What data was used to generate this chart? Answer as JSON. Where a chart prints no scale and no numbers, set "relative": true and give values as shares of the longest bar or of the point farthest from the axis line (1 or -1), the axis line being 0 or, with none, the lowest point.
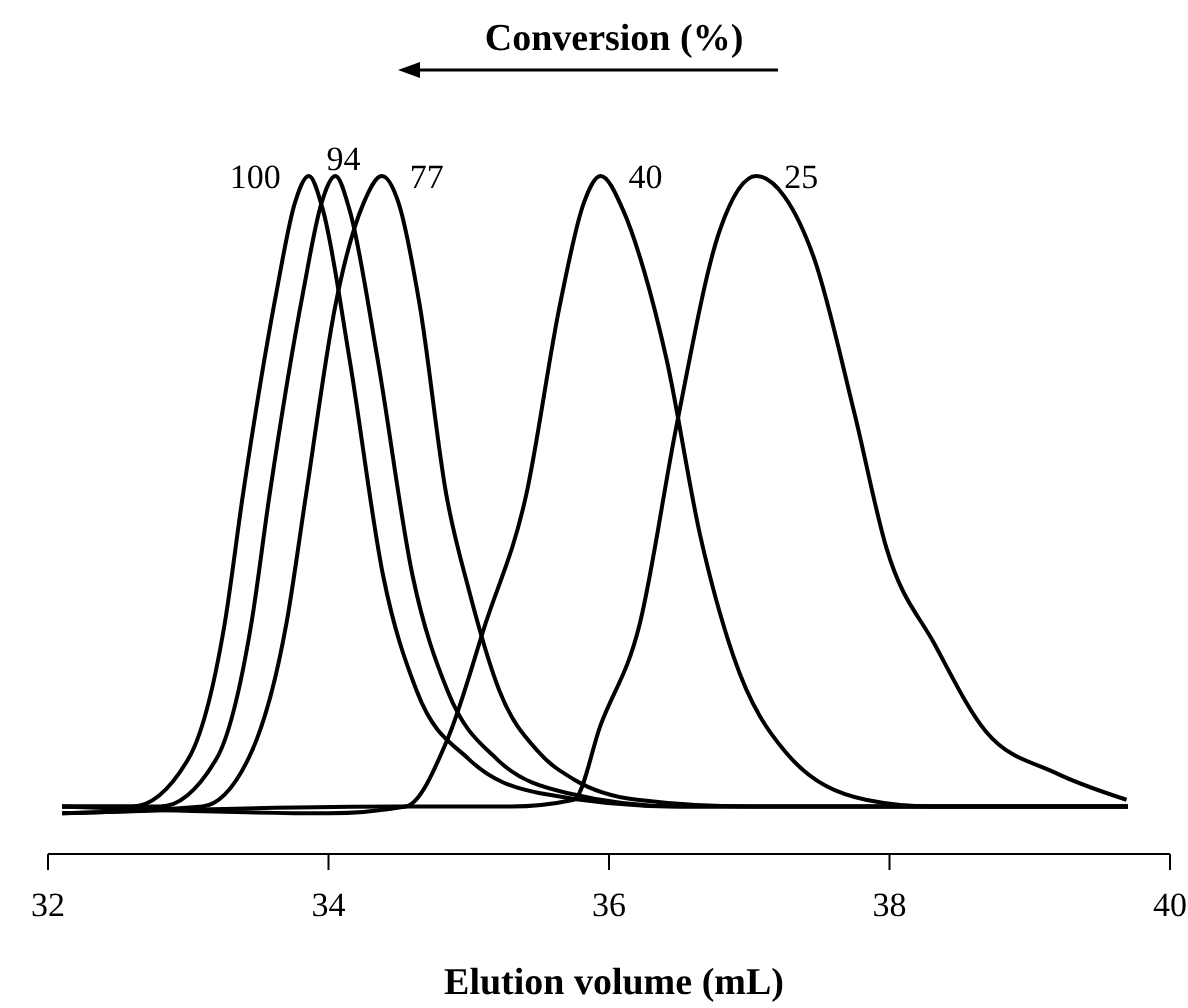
{
  "chart_data": {
    "type": "line",
    "title": "Conversion (%)",
    "xlabel": "Elution volume (mL)",
    "relative": true,
    "xlim": [
      32,
      40
    ],
    "xticks": [
      32,
      34,
      36,
      38,
      40
    ],
    "grid": false,
    "legend": false,
    "marker": "none",
    "line_style": "solid",
    "series": [
      {
        "name": "100",
        "color": "#000000",
        "x": [
          32.1,
          32.6,
          33.0,
          33.26,
          33.39,
          33.63,
          33.76,
          33.86,
          33.96,
          34.15,
          34.39,
          34.63,
          35.0,
          35.5,
          36.5,
          38,
          39.7
        ],
        "values": [
          0.07,
          0.07,
          0.14,
          0.34,
          0.53,
          0.83,
          0.96,
          1,
          0.95,
          0.73,
          0.41,
          0.24,
          0.14,
          0.09,
          0.07,
          0.07,
          0.07
        ]
      },
      {
        "name": "94",
        "color": "#000000",
        "x": [
          32.1,
          32.8,
          33.2,
          33.45,
          33.58,
          33.82,
          33.95,
          34.05,
          34.15,
          34.35,
          34.6,
          34.85,
          35.2,
          35.7,
          36.5,
          38,
          39.7
        ],
        "values": [
          0.07,
          0.07,
          0.14,
          0.34,
          0.53,
          0.83,
          0.96,
          1,
          0.95,
          0.73,
          0.41,
          0.24,
          0.14,
          0.09,
          0.07,
          0.07,
          0.07
        ]
      },
      {
        "name": "77",
        "color": "#000000",
        "x": [
          32.1,
          33.1,
          33.45,
          33.7,
          33.84,
          34.05,
          34.25,
          34.38,
          34.5,
          34.65,
          34.84,
          35.0,
          35.22,
          35.5,
          35.75,
          36.2,
          37,
          38.5,
          39.7
        ],
        "values": [
          0.06,
          0.07,
          0.15,
          0.34,
          0.53,
          0.81,
          0.96,
          1,
          0.96,
          0.81,
          0.53,
          0.39,
          0.24,
          0.15,
          0.11,
          0.08,
          0.07,
          0.07,
          0.07
        ]
      },
      {
        "name": "40",
        "color": "#000000",
        "x": [
          32.1,
          34.0,
          34.55,
          34.85,
          35.12,
          35.41,
          35.65,
          35.82,
          35.94,
          36.1,
          36.25,
          36.41,
          36.65,
          36.89,
          37.26,
          37.83,
          38.3,
          39.7
        ],
        "values": [
          0.07,
          0.06,
          0.07,
          0.17,
          0.34,
          0.53,
          0.81,
          0.96,
          1,
          0.95,
          0.86,
          0.73,
          0.47,
          0.29,
          0.15,
          0.08,
          0.07,
          0.07
        ]
      },
      {
        "name": "25",
        "color": "#000000",
        "x": [
          32.1,
          34.5,
          35.3,
          35.75,
          35.94,
          36.22,
          36.48,
          36.79,
          37.05,
          37.25,
          37.46,
          37.75,
          37.98,
          38.32,
          38.69,
          39.18,
          39.69
        ],
        "values": [
          0.06,
          0.07,
          0.07,
          0.08,
          0.19,
          0.34,
          0.63,
          0.92,
          1,
          0.97,
          0.88,
          0.65,
          0.45,
          0.31,
          0.18,
          0.12,
          0.08
        ]
      }
    ]
  }
}
